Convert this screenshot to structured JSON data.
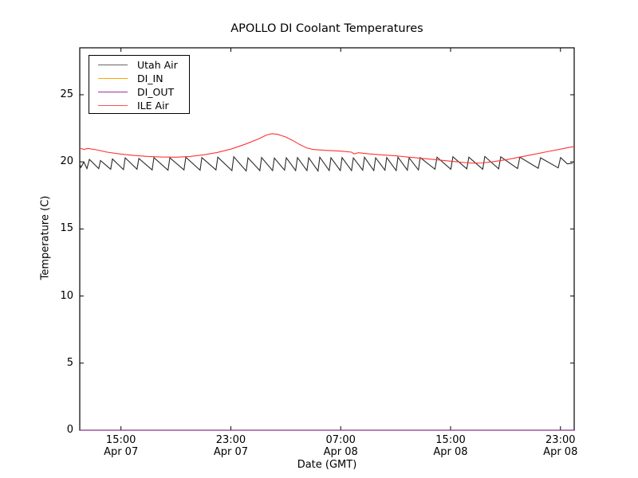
{
  "chart_data": {
    "type": "line",
    "title": "APOLLO DI Coolant Temperatures",
    "xlabel": "Date (GMT)",
    "ylabel": "Temperature (C)",
    "ylim": [
      0,
      28.5
    ],
    "xlim_hours": [
      0,
      36
    ],
    "x_axis_note": "hours elapsed since Apr 07 12:00 GMT",
    "grid": false,
    "legend_position": "upper left",
    "frame_color": "#000000",
    "background": "#ffffff",
    "y_ticks": [
      0,
      5,
      10,
      15,
      20,
      25
    ],
    "x_ticks": [
      {
        "pos": 3,
        "time": "15:00",
        "date": "Apr 07"
      },
      {
        "pos": 11,
        "time": "23:00",
        "date": "Apr 07"
      },
      {
        "pos": 19,
        "time": "07:00",
        "date": "Apr 08"
      },
      {
        "pos": 27,
        "time": "15:00",
        "date": "Apr 08"
      },
      {
        "pos": 35,
        "time": "23:00",
        "date": "Apr 08"
      }
    ],
    "series": [
      {
        "name": "Utah Air",
        "color": "#2b2b2b",
        "legend_swatch_color": "#666666",
        "points": [
          [
            0,
            19.85
          ],
          [
            0.08,
            19.58
          ],
          [
            0.3,
            19.98
          ],
          [
            0.52,
            19.5
          ],
          [
            0.7,
            20.18
          ],
          [
            1.38,
            19.5
          ],
          [
            1.51,
            20.1
          ],
          [
            2.25,
            19.45
          ],
          [
            2.38,
            20.22
          ],
          [
            3.18,
            19.42
          ],
          [
            3.31,
            20.3
          ],
          [
            4.17,
            19.45
          ],
          [
            4.3,
            20.25
          ],
          [
            5.27,
            19.4
          ],
          [
            5.4,
            20.32
          ],
          [
            6.43,
            19.38
          ],
          [
            6.56,
            20.3
          ],
          [
            7.59,
            19.4
          ],
          [
            7.72,
            20.35
          ],
          [
            8.76,
            19.38
          ],
          [
            8.89,
            20.32
          ],
          [
            9.92,
            19.4
          ],
          [
            10.05,
            20.35
          ],
          [
            11.08,
            19.35
          ],
          [
            11.21,
            20.38
          ],
          [
            12.12,
            19.32
          ],
          [
            12.25,
            20.3
          ],
          [
            13.11,
            19.35
          ],
          [
            13.24,
            20.32
          ],
          [
            14.04,
            19.35
          ],
          [
            14.17,
            20.28
          ],
          [
            14.91,
            19.38
          ],
          [
            15.04,
            20.3
          ],
          [
            15.72,
            19.35
          ],
          [
            15.85,
            20.32
          ],
          [
            16.54,
            19.35
          ],
          [
            16.67,
            20.3
          ],
          [
            17.35,
            19.32
          ],
          [
            17.48,
            20.35
          ],
          [
            18.16,
            19.35
          ],
          [
            18.29,
            20.3
          ],
          [
            18.97,
            19.35
          ],
          [
            19.1,
            20.32
          ],
          [
            19.79,
            19.35
          ],
          [
            19.92,
            20.3
          ],
          [
            20.6,
            19.38
          ],
          [
            20.73,
            20.35
          ],
          [
            21.41,
            19.35
          ],
          [
            21.54,
            20.3
          ],
          [
            22.22,
            19.38
          ],
          [
            22.35,
            20.32
          ],
          [
            23.04,
            19.35
          ],
          [
            23.17,
            20.35
          ],
          [
            23.85,
            19.38
          ],
          [
            23.98,
            20.3
          ],
          [
            24.66,
            19.4
          ],
          [
            24.79,
            20.32
          ],
          [
            25.86,
            19.45
          ],
          [
            26.01,
            20.35
          ],
          [
            27.02,
            19.45
          ],
          [
            27.17,
            20.38
          ],
          [
            28.18,
            19.48
          ],
          [
            28.33,
            20.35
          ],
          [
            29.34,
            19.45
          ],
          [
            29.49,
            20.4
          ],
          [
            30.5,
            19.48
          ],
          [
            30.65,
            20.38
          ],
          [
            31.88,
            19.5
          ],
          [
            32.04,
            20.35
          ],
          [
            33.38,
            19.52
          ],
          [
            33.55,
            20.3
          ],
          [
            34.84,
            19.55
          ],
          [
            35.01,
            20.32
          ],
          [
            35.5,
            19.85
          ],
          [
            35.9,
            19.9
          ]
        ]
      },
      {
        "name": "DI_IN",
        "color": "#ffa500",
        "legend_swatch_color": "#ffa500",
        "points": [
          [
            0,
            0
          ],
          [
            36,
            0
          ]
        ]
      },
      {
        "name": "DI_OUT",
        "color": "#993399",
        "legend_swatch_color": "#993399",
        "points": [
          [
            0,
            0
          ],
          [
            36,
            0
          ]
        ]
      },
      {
        "name": "ILE Air",
        "color": "#ff3333",
        "legend_swatch_color": "#ff5555",
        "points": [
          [
            0,
            21.02
          ],
          [
            0.3,
            20.93
          ],
          [
            0.6,
            21.0
          ],
          [
            1.2,
            20.9
          ],
          [
            2,
            20.72
          ],
          [
            3,
            20.58
          ],
          [
            4,
            20.47
          ],
          [
            5,
            20.4
          ],
          [
            6,
            20.36
          ],
          [
            7,
            20.35
          ],
          [
            8,
            20.4
          ],
          [
            9,
            20.52
          ],
          [
            10,
            20.7
          ],
          [
            11,
            20.95
          ],
          [
            12,
            21.3
          ],
          [
            13,
            21.7
          ],
          [
            13.6,
            22.0
          ],
          [
            14,
            22.1
          ],
          [
            14.4,
            22.05
          ],
          [
            15,
            21.85
          ],
          [
            15.5,
            21.6
          ],
          [
            16,
            21.3
          ],
          [
            16.5,
            21.05
          ],
          [
            17,
            20.92
          ],
          [
            18,
            20.85
          ],
          [
            19,
            20.8
          ],
          [
            19.8,
            20.72
          ],
          [
            19.95,
            20.6
          ],
          [
            20.3,
            20.68
          ],
          [
            21,
            20.6
          ],
          [
            22,
            20.52
          ],
          [
            23,
            20.45
          ],
          [
            24,
            20.35
          ],
          [
            25,
            20.25
          ],
          [
            26,
            20.15
          ],
          [
            27,
            20.05
          ],
          [
            28,
            19.95
          ],
          [
            28.6,
            19.9
          ],
          [
            29.3,
            19.92
          ],
          [
            30,
            20.0
          ],
          [
            31,
            20.15
          ],
          [
            32,
            20.35
          ],
          [
            33,
            20.55
          ],
          [
            34,
            20.75
          ],
          [
            35,
            20.95
          ],
          [
            36,
            21.15
          ]
        ]
      }
    ]
  }
}
